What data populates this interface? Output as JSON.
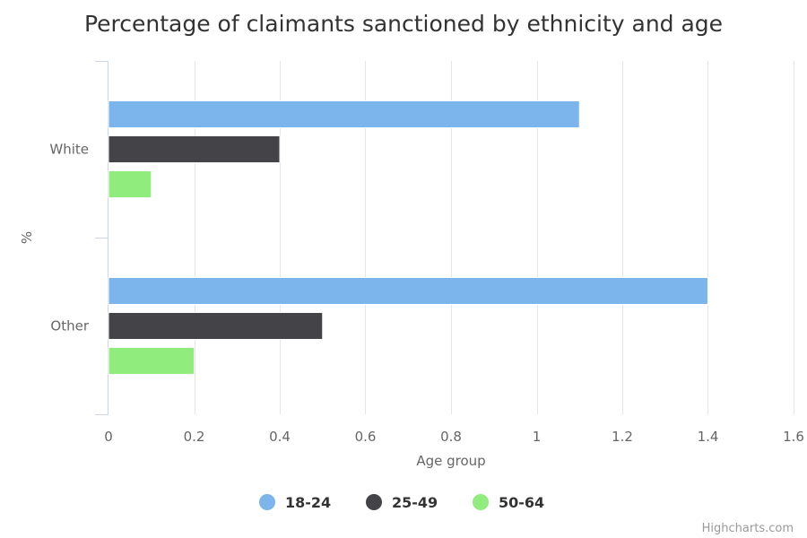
{
  "chart_data": {
    "type": "bar",
    "orientation": "horizontal",
    "title": "Percentage of claimants sanctioned by ethnicity and age",
    "categories": [
      "White",
      "Other"
    ],
    "series": [
      {
        "name": "18-24",
        "color": "#7cb5ec",
        "values": [
          1.1,
          1.4
        ]
      },
      {
        "name": "25-49",
        "color": "#434348",
        "values": [
          0.4,
          0.5
        ]
      },
      {
        "name": "50-64",
        "color": "#90ed7d",
        "values": [
          0.1,
          0.2
        ]
      }
    ],
    "category_axis_label": "%",
    "value_axis_label": "Age group",
    "value_range": [
      0,
      1.6
    ],
    "value_ticks": [
      "0",
      "0.2",
      "0.4",
      "0.6",
      "0.8",
      "1",
      "1.2",
      "1.4",
      "1.6"
    ],
    "grid": true,
    "legend_position": "bottom-center"
  },
  "credits": "Highcharts.com"
}
